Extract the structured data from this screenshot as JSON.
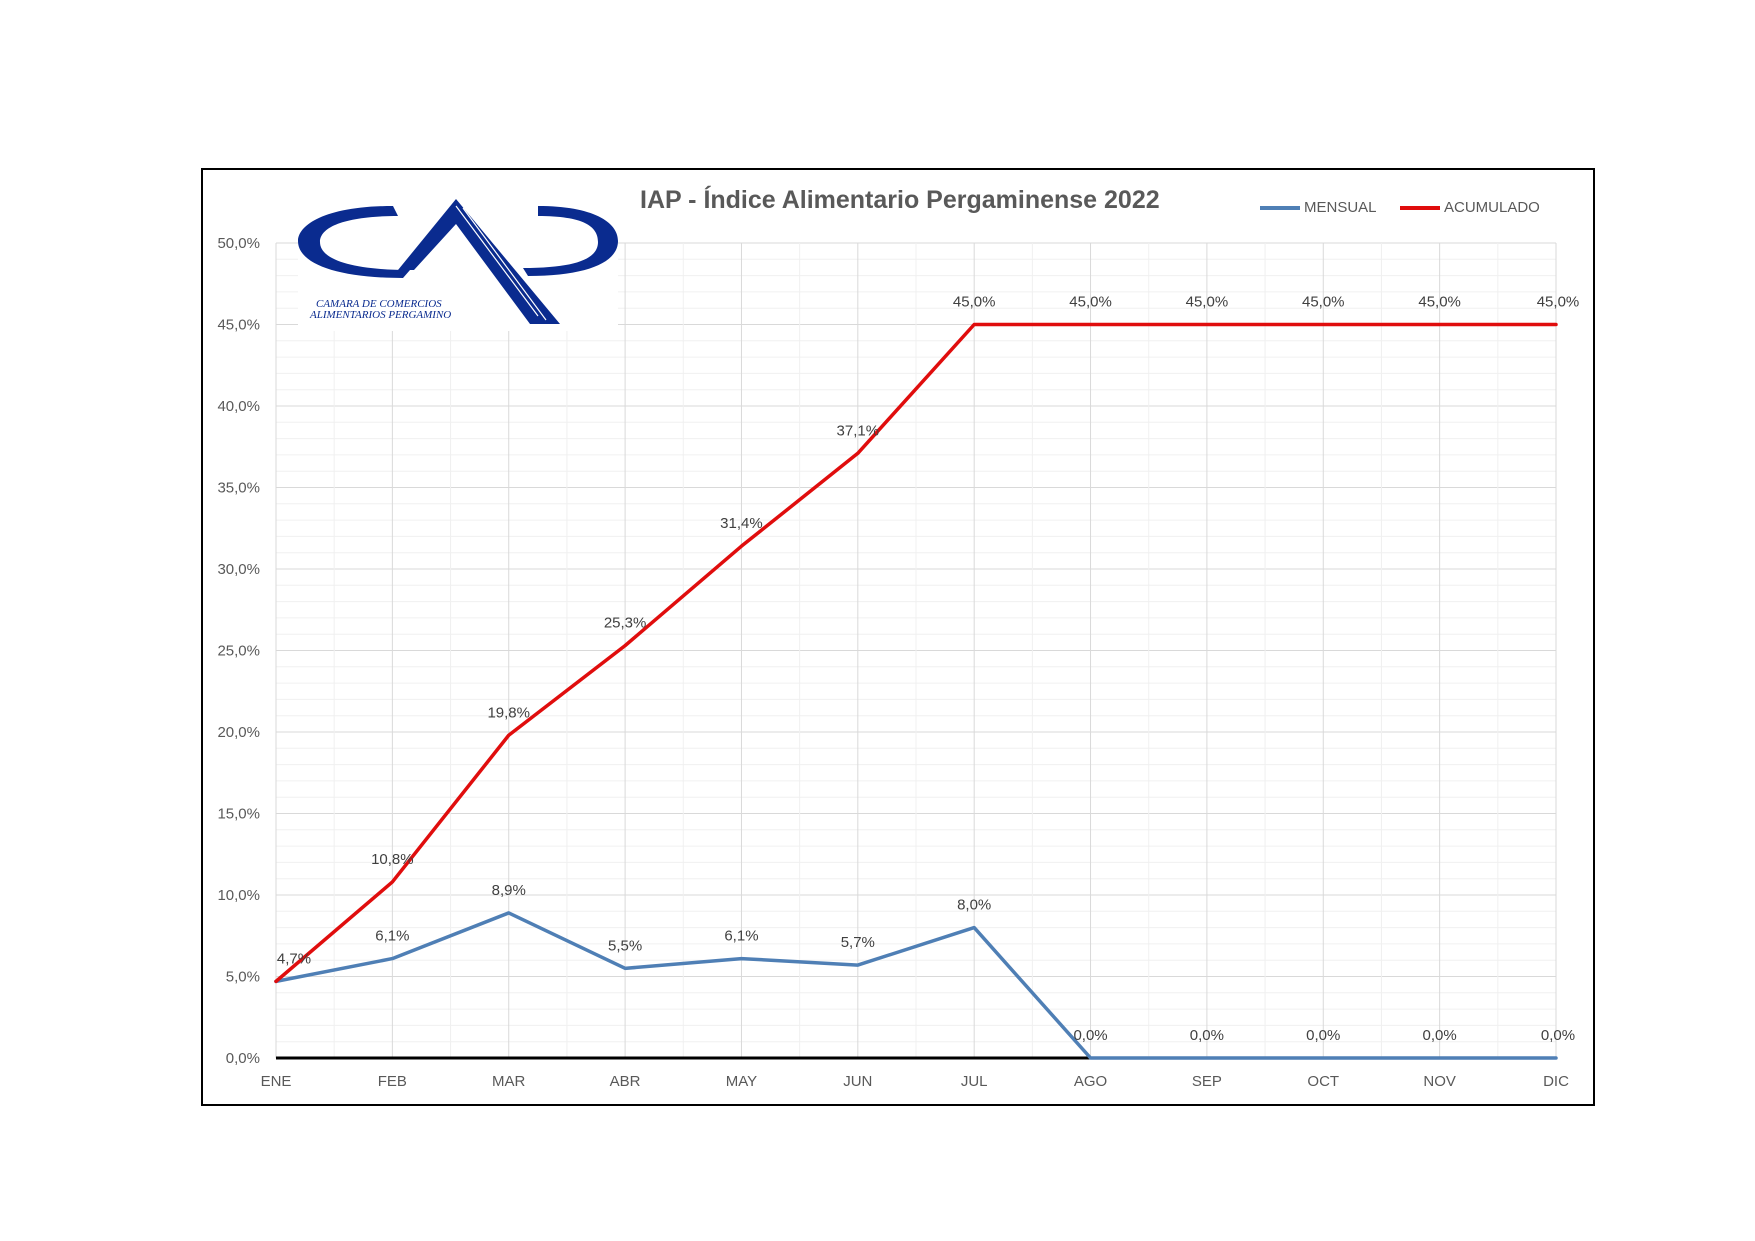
{
  "chart_data": {
    "type": "line",
    "title": "IAP - Índice Alimentario Pergaminense 2022",
    "categories": [
      "ENE",
      "FEB",
      "MAR",
      "ABR",
      "MAY",
      "JUN",
      "JUL",
      "AGO",
      "SEP",
      "OCT",
      "NOV",
      "DIC"
    ],
    "series": [
      {
        "name": "MENSUAL",
        "color": "#4f7fb5",
        "values": [
          4.7,
          6.1,
          8.9,
          5.5,
          6.1,
          5.7,
          8.0,
          0.0,
          0.0,
          0.0,
          0.0,
          0.0
        ],
        "labels": [
          "4,7%",
          "6,1%",
          "8,9%",
          "5,5%",
          "6,1%",
          "5,7%",
          "8,0%",
          "0,0%",
          "0,0%",
          "0,0%",
          "0,0%",
          "0,0%"
        ]
      },
      {
        "name": "ACUMULADO",
        "color": "#e00d0d",
        "values": [
          4.7,
          10.8,
          19.8,
          25.3,
          31.4,
          37.1,
          45.0,
          45.0,
          45.0,
          45.0,
          45.0,
          45.0
        ],
        "labels": [
          "4,7%",
          "10,8%",
          "19,8%",
          "25,3%",
          "31,4%",
          "37,1%",
          "45,0%",
          "45,0%",
          "45,0%",
          "45,0%",
          "45,0%",
          "45,0%"
        ]
      }
    ],
    "ylim": [
      0,
      50
    ],
    "yticks": [
      0,
      5,
      10,
      15,
      20,
      25,
      30,
      35,
      40,
      45,
      50
    ],
    "ytick_labels": [
      "0,0%",
      "5,0%",
      "10,0%",
      "15,0%",
      "20,0%",
      "25,0%",
      "30,0%",
      "35,0%",
      "40,0%",
      "45,0%",
      "50,0%"
    ],
    "xlabel": "",
    "ylabel": "",
    "grid": true,
    "legend_position": "top-right"
  },
  "logo": {
    "line1": "CAMARA DE COMERCIOS",
    "line2": "ALIMENTARIOS PERGAMINO",
    "color": "#0a2b8f"
  }
}
